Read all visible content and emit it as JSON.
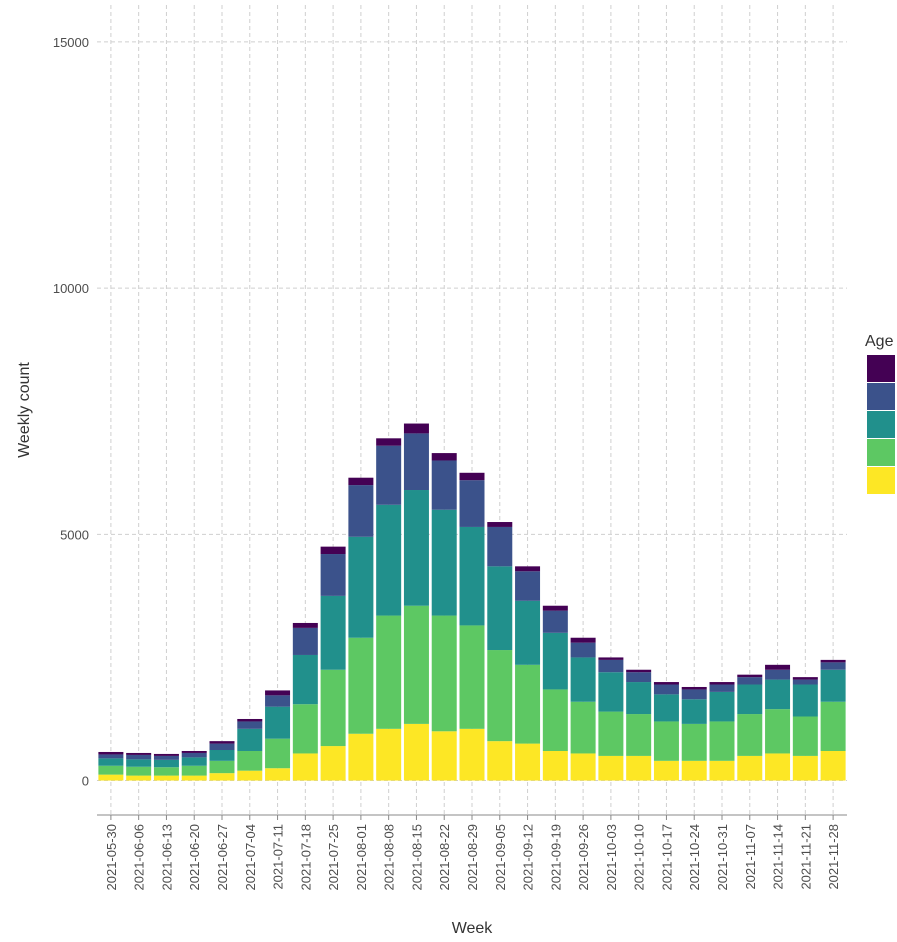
{
  "chart_data": {
    "type": "stacked_bar",
    "x_label": "Week",
    "y_label": "Weekly count",
    "legend_title": "Age",
    "categories": [
      "2021-05-30",
      "2021-06-06",
      "2021-06-13",
      "2021-06-20",
      "2021-06-27",
      "2021-07-04",
      "2021-07-11",
      "2021-07-18",
      "2021-07-25",
      "2021-08-01",
      "2021-08-08",
      "2021-08-15",
      "2021-08-22",
      "2021-08-29",
      "2021-09-05",
      "2021-09-12",
      "2021-09-19",
      "2021-09-26",
      "2021-10-03",
      "2021-10-10",
      "2021-10-17",
      "2021-10-24",
      "2021-10-31",
      "2021-11-07",
      "2021-11-14",
      "2021-11-21",
      "2021-11-28"
    ],
    "series": [
      {
        "color": "#fde725",
        "values": [
          120,
          100,
          100,
          100,
          150,
          200,
          250,
          550,
          700,
          950,
          1050,
          1150,
          1000,
          1050,
          800,
          750,
          600,
          550,
          500,
          500,
          400,
          400,
          400,
          500,
          550,
          500,
          600
        ]
      },
      {
        "color": "#5dc863",
        "values": [
          180,
          180,
          170,
          200,
          250,
          400,
          600,
          1000,
          1550,
          1950,
          2300,
          2400,
          2350,
          2100,
          1850,
          1600,
          1250,
          1050,
          900,
          850,
          800,
          750,
          800,
          850,
          900,
          800,
          1000
        ]
      },
      {
        "color": "#21908c",
        "values": [
          150,
          150,
          150,
          170,
          220,
          450,
          650,
          1000,
          1500,
          2050,
          2250,
          2350,
          2150,
          2000,
          1700,
          1300,
          1150,
          900,
          800,
          650,
          550,
          500,
          600,
          600,
          600,
          650,
          650
        ]
      },
      {
        "color": "#3b528b",
        "values": [
          80,
          90,
          80,
          90,
          130,
          150,
          230,
          550,
          850,
          1050,
          1200,
          1150,
          1000,
          950,
          800,
          600,
          450,
          300,
          250,
          200,
          200,
          200,
          150,
          150,
          200,
          100,
          150
        ]
      },
      {
        "color": "#440154",
        "values": [
          50,
          40,
          40,
          40,
          50,
          50,
          100,
          100,
          150,
          150,
          150,
          200,
          150,
          150,
          100,
          100,
          100,
          100,
          50,
          50,
          50,
          50,
          50,
          50,
          100,
          50,
          50
        ]
      }
    ],
    "ylim": [
      -700,
      15750
    ],
    "yticks": [
      0,
      5000,
      10000,
      15000
    ],
    "grid": true,
    "legend": "right"
  }
}
